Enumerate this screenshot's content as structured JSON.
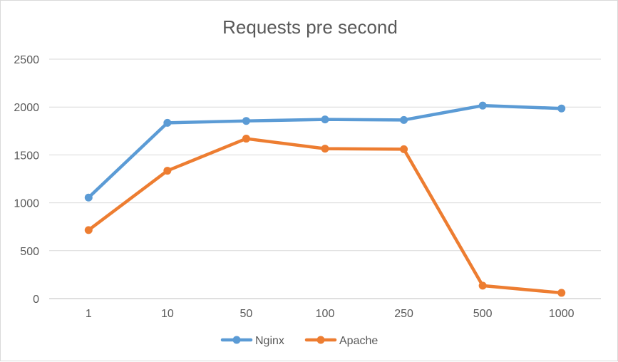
{
  "chart_data": {
    "type": "line",
    "title": "Requests pre second",
    "xlabel": "",
    "ylabel": "",
    "categories": [
      "1",
      "10",
      "50",
      "100",
      "250",
      "500",
      "1000"
    ],
    "ylim": [
      0,
      2500
    ],
    "yticks": [
      0,
      500,
      1000,
      1500,
      2000,
      2500
    ],
    "grid": true,
    "legend_position": "bottom",
    "series": [
      {
        "name": "Nginx",
        "color": "#5b9bd5",
        "values": [
          1055,
          1835,
          1855,
          1870,
          1865,
          2015,
          1985
        ]
      },
      {
        "name": "Apache",
        "color": "#ed7d31",
        "values": [
          715,
          1335,
          1670,
          1565,
          1560,
          135,
          60
        ]
      }
    ]
  }
}
